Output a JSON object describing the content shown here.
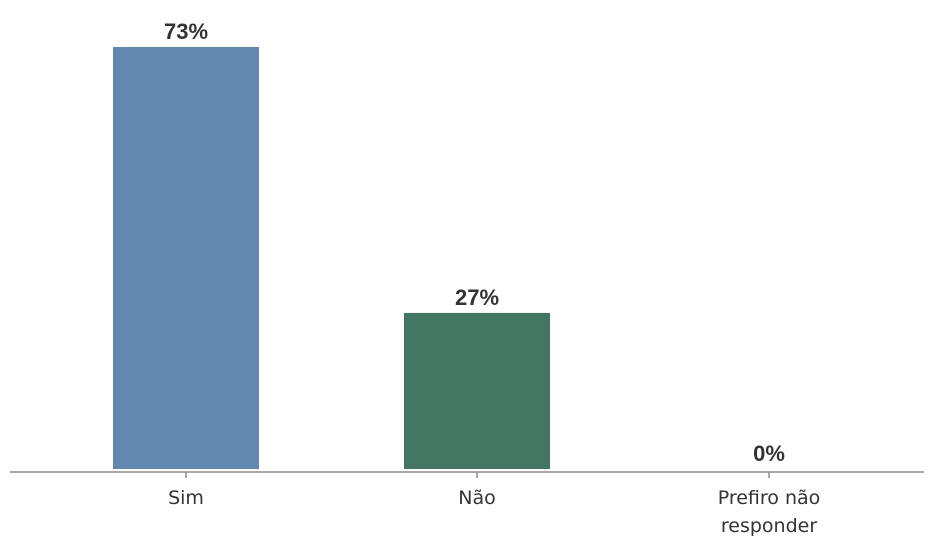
{
  "chart_data": {
    "type": "bar",
    "categories": [
      "Sim",
      "Não",
      "Prefiro não responder"
    ],
    "category_lines": [
      [
        "Sim"
      ],
      [
        "Não"
      ],
      [
        "Prefiro não",
        "responder"
      ]
    ],
    "values": [
      73,
      27,
      0
    ],
    "value_labels": [
      "73%",
      "27%",
      "0%"
    ],
    "colors": [
      "#6388b0",
      "#437563",
      "#6388b0"
    ],
    "ylim": [
      0,
      73
    ],
    "grid": false,
    "legend": "none",
    "title": "",
    "xlabel": "",
    "ylabel": ""
  }
}
